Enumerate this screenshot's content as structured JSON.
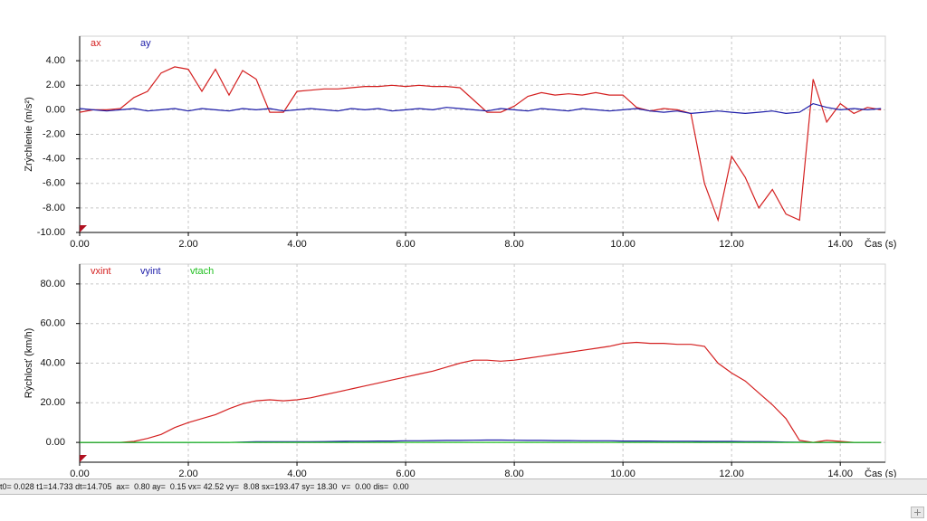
{
  "chart_data": [
    {
      "type": "line",
      "y_label": "Zrýchlenie (m/s²)",
      "x_label": "Čas (s)",
      "grid": true,
      "xlim": [
        0,
        14.83
      ],
      "ylim": [
        -10,
        6
      ],
      "xticks": [
        {
          "value": 0,
          "label": "0.00"
        },
        {
          "value": 2,
          "label": "2.00"
        },
        {
          "value": 4,
          "label": "4.00"
        },
        {
          "value": 6,
          "label": "6.00"
        },
        {
          "value": 8,
          "label": "8.00"
        },
        {
          "value": 10,
          "label": "10.00"
        },
        {
          "value": 12,
          "label": "12.00"
        },
        {
          "value": 14,
          "label": "14.00"
        }
      ],
      "yticks": [
        {
          "value": -10,
          "label": "-10.00"
        },
        {
          "value": -8,
          "label": "-8.00"
        },
        {
          "value": -6,
          "label": "-6.00"
        },
        {
          "value": -4,
          "label": "-4.00"
        },
        {
          "value": -2,
          "label": "-2.00"
        },
        {
          "value": 0,
          "label": "0.00"
        },
        {
          "value": 2,
          "label": "2.00"
        },
        {
          "value": 4,
          "label": "4.00"
        }
      ],
      "x": [
        0,
        0.25,
        0.5,
        0.75,
        1,
        1.25,
        1.5,
        1.75,
        2,
        2.25,
        2.5,
        2.75,
        3,
        3.25,
        3.5,
        3.75,
        4,
        4.25,
        4.5,
        4.75,
        5,
        5.25,
        5.5,
        5.75,
        6,
        6.25,
        6.5,
        6.75,
        7,
        7.25,
        7.5,
        7.75,
        8,
        8.25,
        8.5,
        8.75,
        9,
        9.25,
        9.5,
        9.75,
        10,
        10.25,
        10.5,
        10.75,
        11,
        11.25,
        11.5,
        11.75,
        12,
        12.25,
        12.5,
        12.75,
        13,
        13.25,
        13.5,
        13.75,
        14,
        14.25,
        14.5,
        14.75
      ],
      "series": [
        {
          "name": "ax",
          "color": "#d42020",
          "values": [
            -0.2,
            0,
            0,
            0.1,
            1.0,
            1.5,
            3.0,
            3.5,
            3.3,
            1.5,
            3.3,
            1.2,
            3.2,
            2.5,
            -0.2,
            -0.2,
            1.5,
            1.6,
            1.7,
            1.7,
            1.8,
            1.9,
            1.9,
            2.0,
            1.9,
            2.0,
            1.9,
            1.9,
            1.8,
            0.8,
            -0.2,
            -0.2,
            0.3,
            1.1,
            1.4,
            1.2,
            1.3,
            1.2,
            1.4,
            1.2,
            1.2,
            0.2,
            -0.1,
            0.1,
            0.0,
            -0.3,
            -6.0,
            -9.0,
            -3.8,
            -5.5,
            -8.0,
            -6.5,
            -8.5,
            -9.0,
            2.5,
            -1.0,
            0.5,
            -0.3,
            0.2,
            0.0
          ]
        },
        {
          "name": "ay",
          "color": "#1c1ca8",
          "values": [
            0.1,
            0.0,
            -0.1,
            0.0,
            0.1,
            -0.1,
            0.0,
            0.1,
            -0.1,
            0.1,
            0.0,
            -0.1,
            0.1,
            0.0,
            0.1,
            -0.1,
            0.0,
            0.1,
            0.0,
            -0.1,
            0.1,
            0.0,
            0.1,
            -0.1,
            0.0,
            0.1,
            0.0,
            0.2,
            0.1,
            0.0,
            -0.1,
            0.1,
            0.0,
            -0.1,
            0.1,
            0.0,
            -0.1,
            0.1,
            0.0,
            -0.1,
            0.0,
            0.1,
            -0.1,
            -0.2,
            -0.1,
            -0.3,
            -0.2,
            -0.1,
            -0.2,
            -0.3,
            -0.2,
            -0.1,
            -0.3,
            -0.2,
            0.5,
            0.2,
            0.0,
            0.1,
            0.0,
            0.1
          ]
        }
      ]
    },
    {
      "type": "line",
      "y_label": "Rýchlosť (km/h)",
      "x_label": "Čas (s)",
      "grid": true,
      "xlim": [
        0,
        14.83
      ],
      "ylim": [
        -10,
        90
      ],
      "xticks": [
        {
          "value": 0,
          "label": "0.00"
        },
        {
          "value": 2,
          "label": "2.00"
        },
        {
          "value": 4,
          "label": "4.00"
        },
        {
          "value": 6,
          "label": "6.00"
        },
        {
          "value": 8,
          "label": "8.00"
        },
        {
          "value": 10,
          "label": "10.00"
        },
        {
          "value": 12,
          "label": "12.00"
        },
        {
          "value": 14,
          "label": "14.00"
        }
      ],
      "yticks": [
        {
          "value": 0,
          "label": "0.00"
        },
        {
          "value": 20,
          "label": "20.00"
        },
        {
          "value": 40,
          "label": "40.00"
        },
        {
          "value": 60,
          "label": "60.00"
        },
        {
          "value": 80,
          "label": "80.00"
        }
      ],
      "x": [
        0,
        0.25,
        0.5,
        0.75,
        1,
        1.25,
        1.5,
        1.75,
        2,
        2.25,
        2.5,
        2.75,
        3,
        3.25,
        3.5,
        3.75,
        4,
        4.25,
        4.5,
        4.75,
        5,
        5.25,
        5.5,
        5.75,
        6,
        6.25,
        6.5,
        6.75,
        7,
        7.25,
        7.5,
        7.75,
        8,
        8.25,
        8.5,
        8.75,
        9,
        9.25,
        9.5,
        9.75,
        10,
        10.25,
        10.5,
        10.75,
        11,
        11.25,
        11.5,
        11.75,
        12,
        12.25,
        12.5,
        12.75,
        13,
        13.25,
        13.5,
        13.75,
        14,
        14.25,
        14.5,
        14.75
      ],
      "series": [
        {
          "name": "vxint",
          "color": "#d42020",
          "values": [
            0,
            0,
            0,
            0,
            0.5,
            2,
            4,
            7.5,
            10,
            12,
            14,
            17,
            19.5,
            21,
            21.5,
            21,
            21.5,
            22.5,
            24,
            25.5,
            27,
            28.5,
            30,
            31.5,
            33,
            34.5,
            36,
            38,
            40,
            41.5,
            41.5,
            41,
            41.5,
            42.5,
            43.5,
            44.5,
            45.5,
            46.5,
            47.5,
            48.5,
            50,
            50.5,
            50,
            50,
            49.5,
            49.5,
            48.5,
            40,
            35,
            31,
            25,
            19,
            12,
            1,
            0,
            1,
            0.5,
            0,
            0,
            0
          ]
        },
        {
          "name": "vyint",
          "color": "#1c1ca8",
          "values": [
            0,
            0,
            0,
            0,
            0,
            0,
            0,
            0,
            0,
            0,
            0,
            0,
            0.2,
            0.3,
            0.3,
            0.3,
            0.3,
            0.3,
            0.4,
            0.5,
            0.6,
            0.6,
            0.7,
            0.7,
            0.8,
            0.8,
            0.9,
            1.0,
            1.0,
            1.1,
            1.2,
            1.2,
            1.1,
            1.0,
            1.0,
            0.9,
            0.9,
            0.8,
            0.8,
            0.8,
            0.7,
            0.7,
            0.7,
            0.6,
            0.6,
            0.6,
            0.5,
            0.5,
            0.5,
            0.4,
            0.4,
            0.3,
            0.2,
            0.1,
            0,
            0,
            0,
            0,
            0,
            0
          ]
        },
        {
          "name": "vtach",
          "color": "#22c022",
          "values": [
            0,
            0,
            0,
            0,
            0,
            0,
            0,
            0,
            0,
            0,
            0,
            0,
            0,
            0,
            0,
            0,
            0,
            0,
            0,
            0,
            0,
            0,
            0,
            0,
            0,
            0,
            0,
            0,
            0,
            0,
            0,
            0,
            0,
            0,
            0,
            0,
            0,
            0,
            0,
            0,
            0,
            0,
            0,
            0,
            0,
            0,
            0,
            0,
            0,
            0,
            0,
            0,
            0,
            0,
            0,
            0,
            0,
            0,
            0,
            0
          ]
        }
      ]
    }
  ],
  "status": "t0= 0.028 t1=14.733 dt=14.705  ax=  0.80 ay=  0.15 vx= 42.52 vy=  8.08 sx=193.47 sy= 18.30  v=  0.00 dis=  0.00"
}
